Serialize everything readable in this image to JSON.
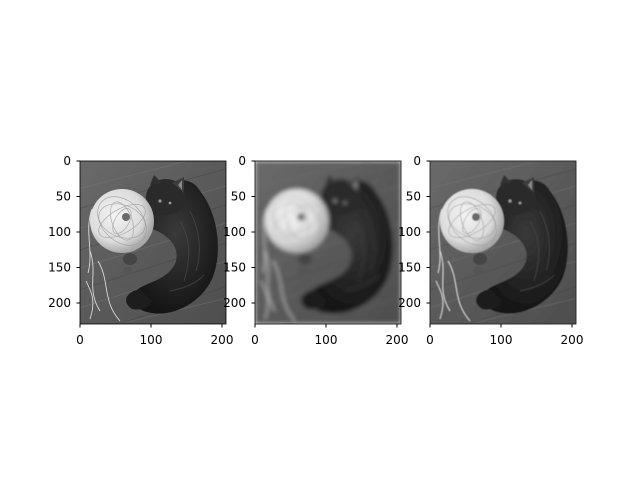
{
  "figure": {
    "panels": [
      {
        "id": "original",
        "x_ticks": [
          "0",
          "100",
          "200"
        ],
        "y_ticks": [
          "0",
          "50",
          "100",
          "150",
          "200"
        ],
        "blur": 0
      },
      {
        "id": "blurred",
        "x_ticks": [
          "0",
          "100",
          "200"
        ],
        "y_ticks": [
          "0",
          "50",
          "100",
          "150",
          "200"
        ],
        "blur": 2.2
      },
      {
        "id": "sharpened",
        "x_ticks": [
          "0",
          "100",
          "200"
        ],
        "y_ticks": [
          "0",
          "50",
          "100",
          "150",
          "200"
        ],
        "blur": 0.6
      }
    ],
    "image_content": "grayscale-kitten-with-yarn-ball"
  }
}
